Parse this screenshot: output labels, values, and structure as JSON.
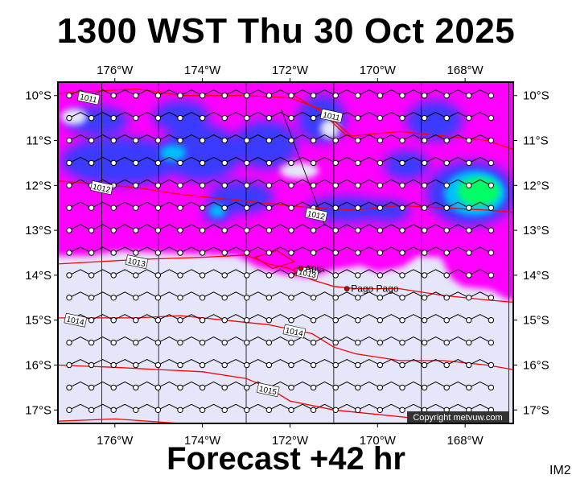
{
  "title": "1300 WST Thu 30 Oct 2025",
  "subtitle": "Forecast +42 hr",
  "chart_id": "IM2",
  "copyright": "Copyright metvuw.com",
  "map": {
    "lon_range": [
      177.3,
      166.9
    ],
    "lat_range": [
      9.7,
      17.3
    ],
    "lon_ticks": [
      "176°W",
      "174°W",
      "172°W",
      "170°W",
      "168°W"
    ],
    "lon_tick_values": [
      176,
      174,
      172,
      170,
      168
    ],
    "lat_ticks": [
      "10°S",
      "11°S",
      "12°S",
      "13°S",
      "14°S",
      "15°S",
      "16°S",
      "17°S"
    ],
    "lat_tick_values": [
      10,
      11,
      12,
      13,
      14,
      15,
      16,
      17
    ],
    "colors": {
      "no_rain": "#e6e6fa",
      "light": "#ff00ff",
      "moderate": "#3333ff",
      "heavy": "#00bfff",
      "very_heavy": "#00ff66",
      "isobar": "#ff0000",
      "land": "#cc0000"
    },
    "isobars": [
      {
        "label": "1011",
        "label_lon": 176.6,
        "label_lat": 10.05,
        "points": [
          [
            177.3,
            9.95
          ],
          [
            175.5,
            9.85
          ],
          [
            174.5,
            10.0
          ],
          [
            173.0,
            10.0
          ],
          [
            172.0,
            10.05
          ],
          [
            171.3,
            10.3
          ],
          [
            170.6,
            10.9
          ],
          [
            169.5,
            10.8
          ],
          [
            168.5,
            10.9
          ],
          [
            167.5,
            11.0
          ],
          [
            166.9,
            11.2
          ]
        ]
      },
      {
        "label": "1011",
        "label_lon": 171.05,
        "label_lat": 10.45,
        "points": [
          [
            171.9,
            10.0
          ],
          [
            171.3,
            10.35
          ],
          [
            170.7,
            10.9
          ]
        ]
      },
      {
        "label": "1012",
        "label_lon": 176.3,
        "label_lat": 12.05,
        "points": [
          [
            177.3,
            11.9
          ],
          [
            175.5,
            12.05
          ],
          [
            174.5,
            12.2
          ],
          [
            173.5,
            12.3
          ],
          [
            172.5,
            12.4
          ],
          [
            171.5,
            12.5
          ],
          [
            170.5,
            12.55
          ],
          [
            169.5,
            12.45
          ],
          [
            168.5,
            12.5
          ],
          [
            167.5,
            12.55
          ],
          [
            166.9,
            12.6
          ]
        ]
      },
      {
        "label": "1012",
        "label_lon": 171.4,
        "label_lat": 12.65,
        "points": []
      },
      {
        "label": "1013",
        "label_lon": 175.5,
        "label_lat": 13.7,
        "points": [
          [
            177.3,
            13.75
          ],
          [
            175.5,
            13.65
          ],
          [
            174.0,
            13.6
          ],
          [
            173.0,
            13.55
          ],
          [
            172.5,
            13.75
          ],
          [
            172.0,
            13.85
          ],
          [
            171.5,
            14.1
          ],
          [
            171.0,
            14.25
          ],
          [
            170.5,
            14.3
          ],
          [
            169.5,
            14.3
          ],
          [
            168.5,
            14.45
          ],
          [
            167.5,
            14.55
          ],
          [
            166.9,
            14.6
          ]
        ]
      },
      {
        "label": "1013",
        "label_lon": 171.6,
        "label_lat": 13.95,
        "points": []
      },
      {
        "label": "1014",
        "label_lon": 176.9,
        "label_lat": 15.0,
        "points": [
          [
            177.3,
            14.95
          ],
          [
            175.5,
            14.95
          ],
          [
            174.5,
            14.9
          ],
          [
            173.5,
            15.0
          ],
          [
            172.5,
            15.1
          ],
          [
            171.5,
            15.3
          ],
          [
            171.0,
            15.6
          ],
          [
            170.5,
            15.75
          ],
          [
            169.5,
            15.9
          ],
          [
            168.5,
            15.9
          ],
          [
            167.5,
            16.0
          ],
          [
            166.9,
            16.1
          ]
        ]
      },
      {
        "label": "1014",
        "label_lon": 171.9,
        "label_lat": 15.25,
        "points": []
      },
      {
        "label": "1015",
        "label_lon": 172.5,
        "label_lat": 16.55,
        "points": [
          [
            177.3,
            16.0
          ],
          [
            176.0,
            16.05
          ],
          [
            175.0,
            16.1
          ],
          [
            174.0,
            16.15
          ],
          [
            173.0,
            16.3
          ],
          [
            172.5,
            16.5
          ],
          [
            172.0,
            16.8
          ],
          [
            171.0,
            17.0
          ],
          [
            170.0,
            17.1
          ],
          [
            169.0,
            17.2
          ],
          [
            168.5,
            17.3
          ]
        ]
      },
      {
        "label": "",
        "label_lon": 0,
        "label_lat": 0,
        "points": [
          [
            177.3,
            17.25
          ],
          [
            176.0,
            17.2
          ],
          [
            174.5,
            17.3
          ]
        ]
      }
    ],
    "places": [
      {
        "name": "Apia",
        "lon": 171.75,
        "lat": 13.85
      },
      {
        "name": "Pago Pago",
        "lon": 170.7,
        "lat": 14.3
      }
    ],
    "grid_lines_lon": [
      176.3,
      175.0,
      173.0,
      171.0,
      169.0,
      167.0
    ],
    "wind_rows": [
      10.0,
      10.5,
      11.0,
      11.5,
      12.0,
      12.5,
      13.0,
      13.5,
      14.0,
      14.5,
      15.0,
      15.5,
      16.0,
      16.5,
      17.0
    ]
  }
}
